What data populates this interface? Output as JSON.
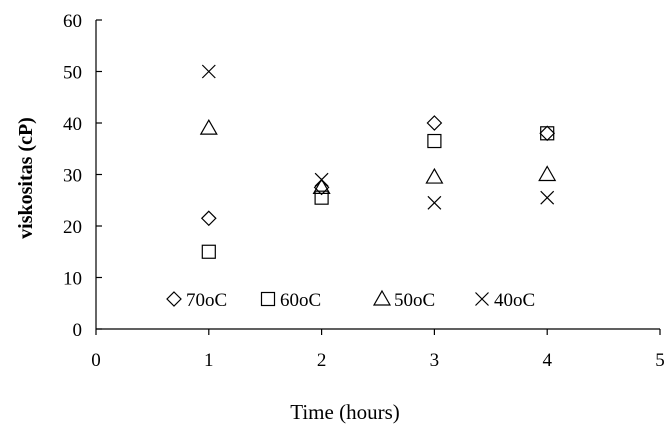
{
  "chart_data": {
    "type": "scatter",
    "title": "",
    "xlabel": "Time (hours)",
    "ylabel": "viskositas (cP)",
    "xlim": [
      0,
      5
    ],
    "ylim": [
      0,
      60
    ],
    "xticks": [
      "0",
      "1",
      "2",
      "3",
      "4",
      "5"
    ],
    "yticks": [
      "0",
      "10",
      "20",
      "30",
      "40",
      "50",
      "60"
    ],
    "grid": false,
    "legend_position": "bottom-inside",
    "series": [
      {
        "name": "70oC",
        "marker": "diamond",
        "x": [
          1,
          2,
          3,
          4
        ],
        "y": [
          21.5,
          27.5,
          40,
          38
        ]
      },
      {
        "name": "60oC",
        "marker": "square",
        "x": [
          1,
          2,
          3,
          4
        ],
        "y": [
          15,
          25.5,
          36.5,
          38
        ]
      },
      {
        "name": "50oC",
        "marker": "triangle",
        "x": [
          1,
          2,
          3,
          4
        ],
        "y": [
          39,
          27.5,
          29.5,
          30
        ]
      },
      {
        "name": "40oC",
        "marker": "cross",
        "x": [
          1,
          2,
          3,
          4
        ],
        "y": [
          50,
          29,
          24.5,
          25.5
        ]
      }
    ]
  }
}
